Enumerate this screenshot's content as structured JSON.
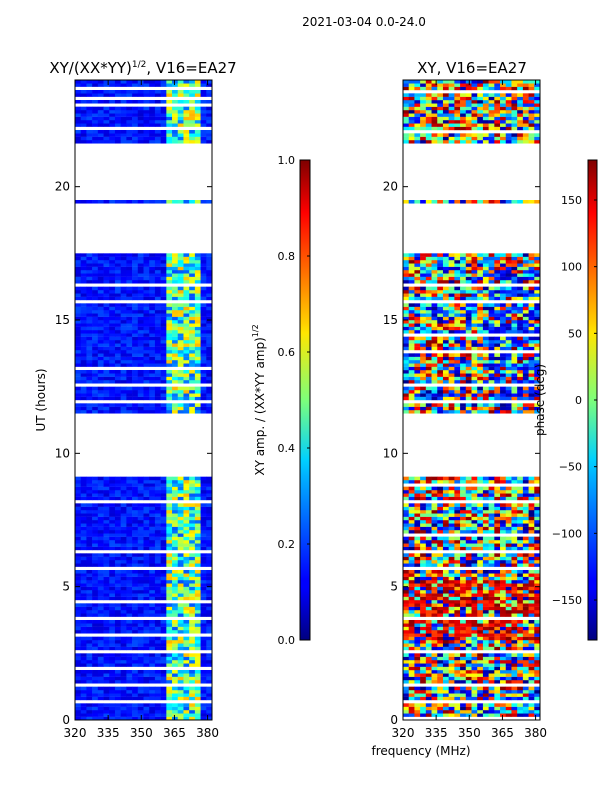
{
  "suptitle": "2021-03-04 0.0-24.0",
  "xlabel_shared": "frequency (MHz)",
  "chart_data": [
    {
      "type": "heatmap",
      "title": "XY/(XX*YY)^1/2, V16=EA27",
      "title_main": "XY/(XX*YY)",
      "title_exp": "1/2",
      "title_rest": ", V16=EA27",
      "xlabel": "frequency (MHz)",
      "ylabel": "UT (hours)",
      "xlim": [
        320,
        382
      ],
      "ylim": [
        0,
        24
      ],
      "xticks": [
        320,
        335,
        350,
        365,
        380
      ],
      "yticks": [
        0,
        5,
        10,
        15,
        20
      ],
      "colorbar": {
        "label": "XY amp. / (XX*YY amp)^1/2",
        "label_main": "XY amp. / (XX*YY amp)",
        "label_exp": "1/2",
        "range": [
          0.0,
          1.0
        ],
        "ticks": [
          "0.0",
          "0.2",
          "0.4",
          "0.6",
          "0.8",
          "1.0"
        ],
        "tick_values": [
          0.0,
          0.2,
          0.4,
          0.6,
          0.8,
          1.0
        ],
        "colormap": "jet"
      },
      "data_gaps_ut": [
        [
          9.1,
          11.5
        ],
        [
          17.5,
          19.4
        ],
        [
          19.5,
          21.6
        ]
      ]
    },
    {
      "type": "heatmap",
      "title": "XY, V16=EA27",
      "xlabel": "frequency (MHz)",
      "ylabel": "",
      "xlim": [
        320,
        382
      ],
      "ylim": [
        0,
        24
      ],
      "xticks": [
        320,
        335,
        350,
        365,
        380
      ],
      "yticks": [
        0,
        5,
        10,
        15,
        20
      ],
      "colorbar": {
        "label": "phase (deg)",
        "range": [
          -180,
          180
        ],
        "ticks": [
          "150",
          "100",
          "50",
          "0",
          "−50",
          "−100",
          "−150"
        ],
        "tick_values": [
          150,
          100,
          50,
          0,
          -50,
          -100,
          -150
        ],
        "colormap": "jet"
      },
      "data_gaps_ut": [
        [
          9.1,
          11.5
        ],
        [
          17.5,
          19.4
        ],
        [
          19.5,
          21.6
        ]
      ]
    }
  ]
}
